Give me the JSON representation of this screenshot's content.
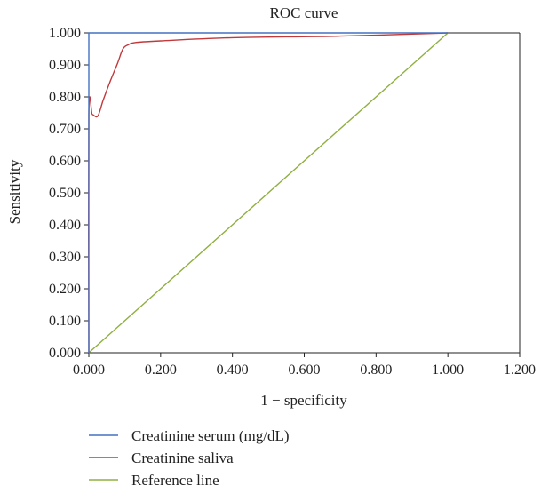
{
  "chart_data": {
    "type": "line",
    "title": "ROC curve",
    "xlabel": "1 − specificity",
    "ylabel": "Sensitivity",
    "xlim": [
      0,
      1.2
    ],
    "ylim": [
      0,
      1
    ],
    "x_ticks": [
      "0.000",
      "0.200",
      "0.400",
      "0.600",
      "0.800",
      "1.000",
      "1.200"
    ],
    "y_ticks": [
      "0.000",
      "0.100",
      "0.200",
      "0.300",
      "0.400",
      "0.500",
      "0.600",
      "0.700",
      "0.800",
      "0.900",
      "1.000"
    ],
    "grid": false,
    "legend_position": "bottom",
    "series": [
      {
        "name": "Creatinine serum (mg/dL)",
        "color": "#4472c4",
        "x": [
          0,
          0,
          1.0
        ],
        "y": [
          0,
          1.0,
          1.0
        ]
      },
      {
        "name": "Creatinine saliva",
        "color": "#c0393b",
        "x": [
          0,
          0,
          0.01,
          0.025,
          0.04,
          0.06,
          0.08,
          0.095,
          0.11,
          0.13,
          0.2,
          0.4,
          0.7,
          1.0
        ],
        "y": [
          0,
          0.745,
          0.745,
          0.74,
          0.79,
          0.85,
          0.905,
          0.95,
          0.963,
          0.97,
          0.975,
          0.985,
          0.99,
          1.0
        ]
      },
      {
        "name": "Reference line",
        "color": "#8fb040",
        "x": [
          0,
          1.0
        ],
        "y": [
          0,
          1.0
        ]
      }
    ]
  }
}
